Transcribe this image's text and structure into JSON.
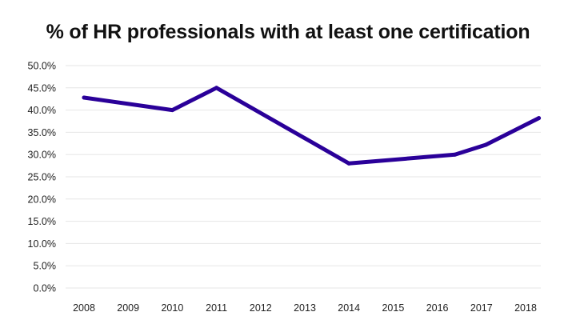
{
  "chart_data": {
    "type": "line",
    "title": "% of HR professionals with at least one certification",
    "xlabel": "",
    "ylabel": "",
    "x": [
      "2008",
      "2009",
      "2010",
      "2011",
      "2012",
      "2013",
      "2014",
      "2015",
      "2016",
      "2017",
      "2018"
    ],
    "y_ticks": [
      "0.0%",
      "5.0%",
      "10.0%",
      "15.0%",
      "20.0%",
      "25.0%",
      "30.0%",
      "35.0%",
      "40.0%",
      "45.0%",
      "50.0%"
    ],
    "ylim": [
      0,
      50
    ],
    "grid": true,
    "series": [
      {
        "name": "% of HR professionals with at least one certification",
        "color": "#2a0099",
        "points": [
          {
            "x": 2008,
            "y": 42.8
          },
          {
            "x": 2010,
            "y": 40.0
          },
          {
            "x": 2011,
            "y": 45.0
          },
          {
            "x": 2014,
            "y": 28.0
          },
          {
            "x": 2016.4,
            "y": 30.0
          },
          {
            "x": 2017.1,
            "y": 32.2
          },
          {
            "x": 2018.3,
            "y": 38.2
          }
        ]
      }
    ]
  }
}
